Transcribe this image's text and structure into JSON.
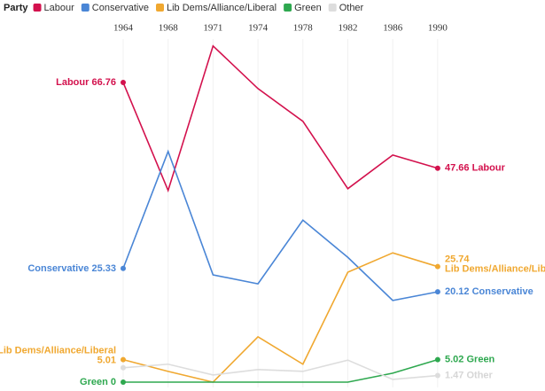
{
  "chart_data": {
    "type": "line",
    "legend_title": "Party",
    "categories": [
      "1964",
      "1968",
      "1971",
      "1974",
      "1978",
      "1982",
      "1986",
      "1990"
    ],
    "series": [
      {
        "name": "Labour",
        "color": "#d3114d",
        "values": [
          66.76,
          42.7,
          74.9,
          65.4,
          58.1,
          43.1,
          50.6,
          47.66
        ]
      },
      {
        "name": "Conservative",
        "color": "#4a86d6",
        "values": [
          25.33,
          51.4,
          23.9,
          21.9,
          36.1,
          27.8,
          18.2,
          20.12
        ]
      },
      {
        "name": "Lib Dems/Alliance/Liberal",
        "color": "#f0a830",
        "values": [
          5.01,
          2.4,
          0,
          10.1,
          4.0,
          24.5,
          28.8,
          25.74
        ]
      },
      {
        "name": "Green",
        "color": "#2ea84f",
        "values": [
          0,
          0,
          0,
          0,
          0,
          0,
          2.0,
          5.02
        ]
      },
      {
        "name": "Other",
        "color": "#dddddd",
        "values": [
          3.2,
          4.0,
          1.6,
          2.8,
          2.4,
          4.9,
          0.6,
          1.47
        ]
      }
    ],
    "ylim": [
      0,
      75
    ],
    "grid": true
  }
}
